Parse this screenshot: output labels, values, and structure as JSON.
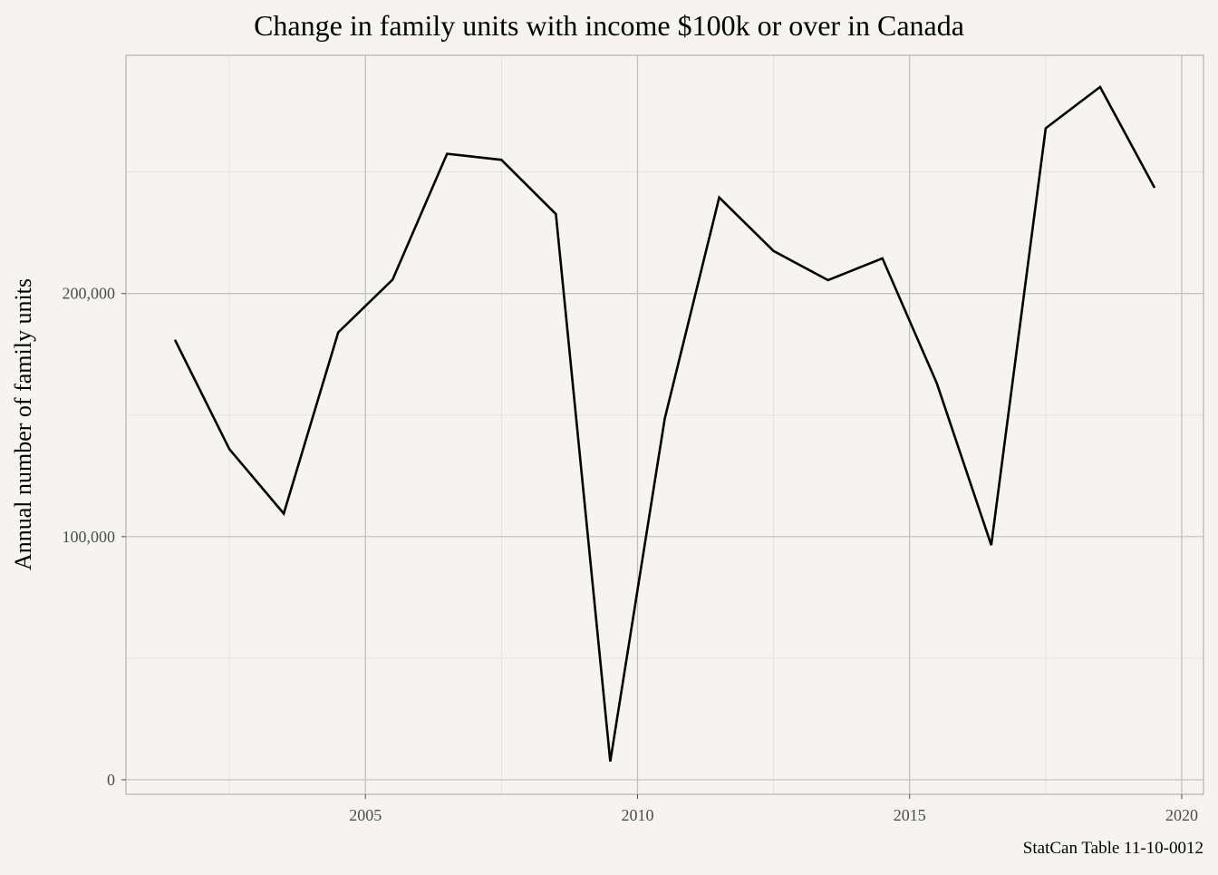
{
  "chart_data": {
    "type": "line",
    "title": "Change in family units with income $100k or over in Canada",
    "xlabel": "",
    "ylabel": "Annual number of family units",
    "caption": "StatCan Table 11-10-0012",
    "x": [
      2001.5,
      2002.5,
      2003.5,
      2004.5,
      2005.5,
      2006.5,
      2007.5,
      2008.5,
      2009.5,
      2010.5,
      2011.5,
      2012.5,
      2013.5,
      2014.5,
      2015.5,
      2016.5,
      2017.5,
      2018.5,
      2019.5
    ],
    "series": [
      {
        "values": [
          181000,
          136000,
          109500,
          184000,
          205700,
          257500,
          255000,
          232700,
          7500,
          148500,
          239500,
          217500,
          205500,
          214500,
          163000,
          96500,
          268000,
          285000,
          243500
        ]
      }
    ],
    "xlim": [
      2000.6,
      2020.4
    ],
    "ylim": [
      -6000,
      298000
    ],
    "x_ticks": [
      2005,
      2010,
      2015,
      2020
    ],
    "x_tick_labels": [
      "2005",
      "2010",
      "2015",
      "2020"
    ],
    "y_ticks": [
      0,
      100000,
      200000
    ],
    "y_tick_labels": [
      "0",
      "100,000",
      "200,000"
    ],
    "grid": true,
    "line_color": "#000000",
    "panel_border_color": "#b3b3b3",
    "grid_major_color": "#bebebe",
    "grid_minor_color": "#e3e3e3"
  }
}
